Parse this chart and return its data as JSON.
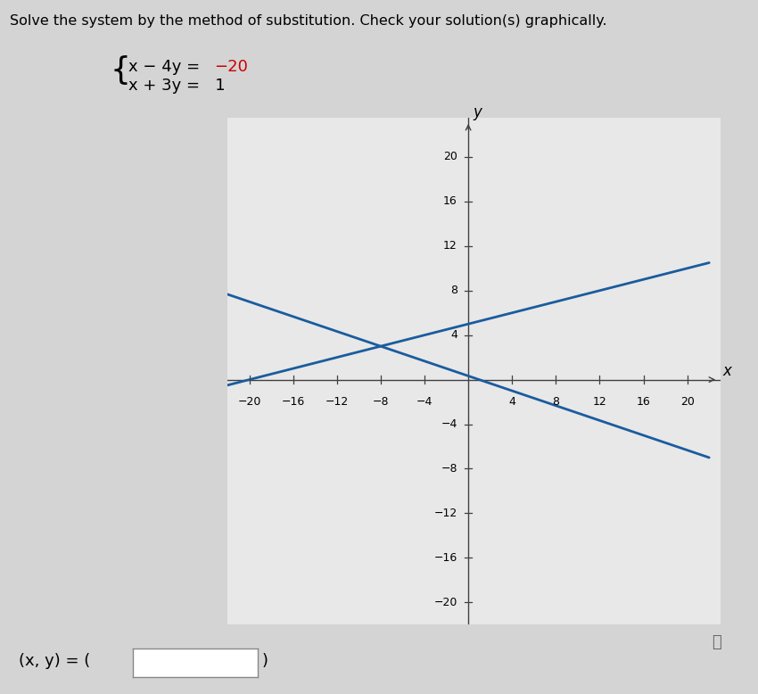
{
  "info_text": "Solve the system by the method of substitution. Check your solution(s) graphically.",
  "eq1_part1": "x − 4y = ",
  "eq1_part2": "−20",
  "eq2": "x + 3y =   1",
  "xlim": [
    -22,
    22
  ],
  "ylim": [
    -22,
    22
  ],
  "xticks": [
    -20,
    -16,
    -12,
    -8,
    -4,
    4,
    8,
    12,
    16,
    20
  ],
  "yticks": [
    -20,
    -16,
    -12,
    -8,
    -4,
    4,
    8,
    12,
    16,
    20
  ],
  "xtick_labels": [
    "−20",
    "−16",
    "−12",
    "−8",
    "−4",
    "4",
    "8",
    "12",
    "16",
    "20"
  ],
  "ytick_labels": [
    "−20",
    "−16",
    "−12",
    "−8",
    "−4",
    "4",
    "8",
    "12",
    "16",
    "20"
  ],
  "line_color": "#1a5c9e",
  "line_width": 2.0,
  "axis_color": "#404040",
  "background_color": "#d4d4d4",
  "plot_bg_color": "#e8e8e8",
  "xlabel": "x",
  "ylabel": "y",
  "eq1_color": "#cc0000",
  "eq2_color": "#000000",
  "answer_text": "(x, y) = (",
  "close_paren": ")",
  "info_icon": "ⓘ"
}
